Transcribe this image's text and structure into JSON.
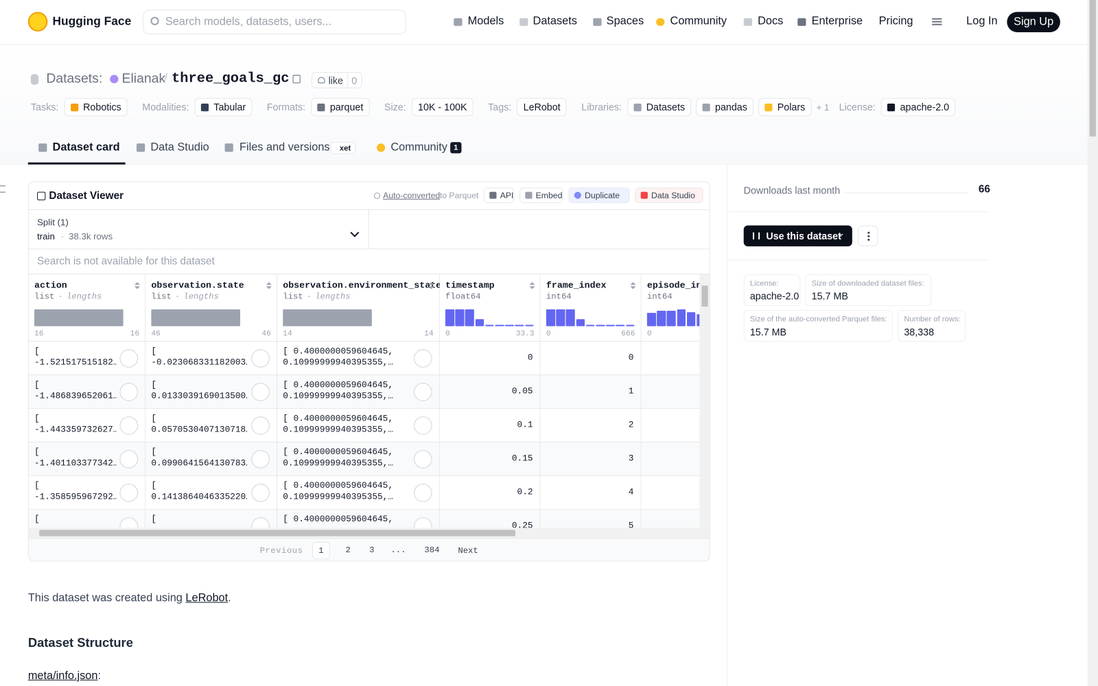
{
  "nav": {
    "brand": "Hugging Face",
    "search_placeholder": "Search models, datasets, users...",
    "links": [
      "Models",
      "Datasets",
      "Spaces",
      "Community",
      "Docs",
      "Enterprise",
      "Pricing"
    ],
    "login": "Log In",
    "signup": "Sign Up"
  },
  "header": {
    "section": "Datasets:",
    "owner": "Elianak",
    "separator": "/",
    "name": "three_goals_gc",
    "like": "like",
    "likes": 0,
    "tag_groups": [
      {
        "label": "Tasks:",
        "items": [
          "Robotics"
        ]
      },
      {
        "label": "Modalities:",
        "items": [
          "Tabular"
        ]
      },
      {
        "label": "Formats:",
        "items": [
          "parquet"
        ]
      },
      {
        "label": "Size:",
        "items": [
          "10K - 100K"
        ]
      },
      {
        "label": "Tags:",
        "items": [
          "LeRobot"
        ]
      },
      {
        "label": "Libraries:",
        "items": [
          "Datasets",
          "pandas",
          "Polars"
        ],
        "more": "+ 1"
      },
      {
        "label": "License:",
        "items": [
          "apache-2.0"
        ]
      }
    ]
  },
  "tabs": [
    {
      "label": "Dataset card"
    },
    {
      "label": "Data Studio"
    },
    {
      "label": "Files and versions",
      "badge": "xet"
    },
    {
      "label": "Community",
      "badge": 1
    }
  ],
  "viewer": {
    "title": "Dataset Viewer",
    "converted": "Auto-converted",
    "converted_suffix": "to Parquet",
    "buttons": [
      "API",
      "Embed",
      "Duplicate",
      "Data Studio"
    ],
    "split_label": "Split (1)",
    "split": "train",
    "dot": "·",
    "rows_count": "38.3k rows",
    "search": "Search is not available for this dataset",
    "columns": [
      {
        "name": "action",
        "dtype": "list",
        "note": "lengths",
        "hist": [
          100
        ],
        "min": 16,
        "max": 16
      },
      {
        "name": "observation.state",
        "dtype": "list",
        "note": "lengths",
        "hist": [
          100
        ],
        "min": 46,
        "max": 46
      },
      {
        "name": "observation.environment_state",
        "dtype": "list",
        "note": "lengths",
        "hist": [
          100
        ],
        "min": 14,
        "max": 14
      },
      {
        "name": "timestamp",
        "dtype": "float64",
        "hist": [
          100,
          100,
          100,
          40,
          8,
          8,
          8,
          8,
          8
        ],
        "min": 0,
        "max": 33.3
      },
      {
        "name": "frame_index",
        "dtype": "int64",
        "hist": [
          100,
          100,
          100,
          40,
          8,
          8,
          8,
          8,
          8
        ],
        "min": 0,
        "max": 666
      },
      {
        "name": "episode_index",
        "dtype": "int64",
        "hist": [
          80,
          90,
          90,
          100,
          85,
          70
        ],
        "min": 0
      }
    ],
    "rows": [
      [
        [
          "[",
          "-1.521517515182…"
        ],
        [
          "[",
          "-0.023068331182003…"
        ],
        [
          "[ 0.4000000059604645,",
          "0.10999999940395355,…"
        ],
        0,
        0
      ],
      [
        [
          "[",
          "-1.486839652061…"
        ],
        [
          "[",
          "0.0133039169013500…"
        ],
        [
          "[ 0.4000000059604645,",
          "0.10999999940395355,…"
        ],
        0.05,
        1
      ],
      [
        [
          "[",
          "-1.443359732627…"
        ],
        [
          "[",
          "0.0570530407130718…"
        ],
        [
          "[ 0.4000000059604645,",
          "0.10999999940395355,…"
        ],
        0.1,
        2
      ],
      [
        [
          "[",
          "-1.401103377342…"
        ],
        [
          "[",
          "0.0990641564130783…"
        ],
        [
          "[ 0.4000000059604645,",
          "0.10999999940395355,…"
        ],
        0.15,
        3
      ],
      [
        [
          "[",
          "-1.358595967292…"
        ],
        [
          "[",
          "0.1413864046335220…"
        ],
        [
          "[ 0.4000000059604645,",
          "0.10999999940395355,…"
        ],
        0.2,
        4
      ],
      [
        [
          "["
        ],
        [
          "["
        ],
        [
          "[ 0.4000000059604645,"
        ],
        0.25,
        5
      ]
    ],
    "pagination": {
      "previous": "Previous",
      "pages": [
        1,
        2,
        3,
        "...",
        384
      ],
      "next": "Next"
    }
  },
  "body": {
    "intro": "This dataset was created using ",
    "intro_link": "LeRobot",
    "intro_end": ".",
    "heading": "Dataset Structure",
    "file_link": "meta/info.json",
    "file_suffix": ":"
  },
  "sidebar": {
    "downloads_label": "Downloads last month",
    "downloads": 66,
    "use_button": "Use this dataset",
    "info": [
      {
        "label": "License:",
        "value": "apache-2.0"
      },
      {
        "label": "Size of downloaded dataset files:",
        "value": "15.7 MB"
      },
      {
        "label": "Size of the auto-converted Parquet files:",
        "value": "15.7 MB"
      },
      {
        "label": "Number of rows:",
        "value": "38,338"
      }
    ]
  }
}
